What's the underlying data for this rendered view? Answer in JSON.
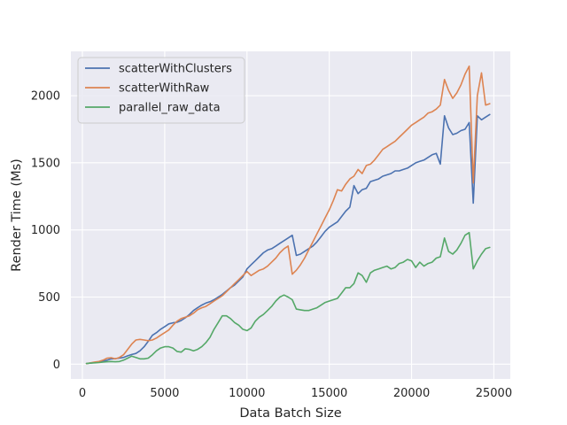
{
  "chart_data": {
    "type": "line",
    "xlabel": "Data Batch Size",
    "ylabel": "Render Time (Ms)",
    "xlim": [
      -700,
      26000
    ],
    "ylim": [
      -110,
      2330
    ],
    "xticks": [
      0,
      5000,
      10000,
      15000,
      20000,
      25000
    ],
    "yticks": [
      0,
      500,
      1000,
      1500,
      2000
    ],
    "grid": true,
    "legend_position": "upper-left",
    "x": [
      250,
      500,
      750,
      1000,
      1250,
      1500,
      1750,
      2000,
      2250,
      2500,
      2750,
      3000,
      3250,
      3500,
      3750,
      4000,
      4250,
      4500,
      4750,
      5000,
      5250,
      5500,
      5750,
      6000,
      6250,
      6500,
      6750,
      7000,
      7250,
      7500,
      7750,
      8000,
      8250,
      8500,
      8750,
      9000,
      9250,
      9500,
      9750,
      10000,
      10250,
      10500,
      10750,
      11000,
      11250,
      11500,
      11750,
      12000,
      12250,
      12500,
      12750,
      13000,
      13250,
      13500,
      13750,
      14000,
      14250,
      14500,
      14750,
      15000,
      15250,
      15500,
      15750,
      16000,
      16250,
      16500,
      16750,
      17000,
      17250,
      17500,
      17750,
      18000,
      18250,
      18500,
      18750,
      19000,
      19250,
      19500,
      19750,
      20000,
      20250,
      20500,
      20750,
      21000,
      21250,
      21500,
      21750,
      22000,
      22250,
      22500,
      22750,
      23000,
      23250,
      23500,
      23750,
      24000,
      24250,
      24500,
      24750
    ],
    "series": [
      {
        "name": "scatterWithClusters",
        "color": "#4c72b0",
        "values": [
          5,
          8,
          12,
          16,
          22,
          30,
          40,
          42,
          45,
          50,
          62,
          72,
          80,
          100,
          130,
          170,
          215,
          235,
          260,
          280,
          300,
          308,
          312,
          325,
          345,
          370,
          400,
          420,
          440,
          455,
          465,
          480,
          500,
          520,
          545,
          570,
          590,
          620,
          650,
          710,
          740,
          770,
          800,
          830,
          850,
          860,
          880,
          900,
          920,
          940,
          960,
          810,
          820,
          840,
          860,
          880,
          910,
          950,
          990,
          1020,
          1040,
          1060,
          1100,
          1140,
          1170,
          1330,
          1270,
          1300,
          1310,
          1360,
          1370,
          1380,
          1400,
          1410,
          1420,
          1440,
          1440,
          1450,
          1460,
          1480,
          1500,
          1510,
          1520,
          1540,
          1560,
          1570,
          1490,
          1850,
          1760,
          1710,
          1720,
          1740,
          1750,
          1800,
          1200,
          1850,
          1820,
          1840,
          1860
        ]
      },
      {
        "name": "scatterWithRaw",
        "color": "#dd8452",
        "values": [
          4,
          10,
          16,
          20,
          30,
          45,
          48,
          40,
          50,
          70,
          110,
          150,
          180,
          185,
          180,
          175,
          180,
          195,
          215,
          235,
          255,
          290,
          320,
          340,
          350,
          360,
          380,
          405,
          420,
          430,
          450,
          470,
          490,
          510,
          540,
          570,
          600,
          630,
          660,
          690,
          660,
          680,
          700,
          710,
          730,
          760,
          790,
          830,
          860,
          880,
          670,
          700,
          740,
          790,
          850,
          910,
          970,
          1030,
          1090,
          1150,
          1220,
          1300,
          1290,
          1340,
          1380,
          1400,
          1450,
          1420,
          1480,
          1490,
          1520,
          1560,
          1600,
          1620,
          1640,
          1660,
          1690,
          1720,
          1750,
          1780,
          1800,
          1820,
          1840,
          1870,
          1880,
          1900,
          1930,
          2120,
          2040,
          1980,
          2020,
          2080,
          2160,
          2220,
          1350,
          2000,
          2170,
          1930,
          1940
        ]
      },
      {
        "name": "parallel_raw_data",
        "color": "#55a868",
        "values": [
          5,
          8,
          10,
          12,
          15,
          18,
          20,
          18,
          20,
          30,
          45,
          60,
          50,
          40,
          40,
          45,
          70,
          100,
          120,
          130,
          130,
          120,
          95,
          90,
          115,
          110,
          100,
          110,
          130,
          160,
          200,
          260,
          310,
          360,
          360,
          340,
          310,
          290,
          260,
          250,
          270,
          320,
          350,
          370,
          400,
          430,
          470,
          500,
          515,
          500,
          480,
          410,
          405,
          400,
          400,
          410,
          420,
          440,
          460,
          470,
          480,
          490,
          530,
          570,
          570,
          600,
          680,
          660,
          610,
          680,
          700,
          710,
          720,
          730,
          710,
          720,
          750,
          760,
          780,
          770,
          720,
          760,
          730,
          750,
          760,
          790,
          800,
          940,
          840,
          820,
          850,
          900,
          960,
          980,
          710,
          770,
          820,
          860,
          870
        ]
      }
    ]
  }
}
